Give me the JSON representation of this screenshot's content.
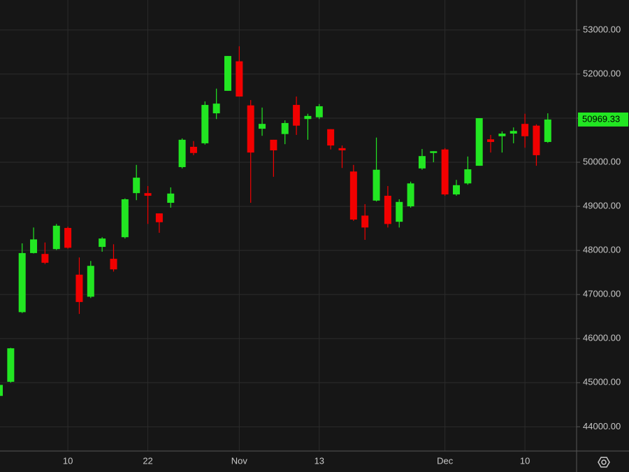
{
  "chart_data": {
    "type": "candlestick",
    "categories": [
      null,
      null,
      null,
      null,
      null,
      null,
      "10",
      null,
      null,
      null,
      null,
      null,
      null,
      "22",
      null,
      null,
      null,
      null,
      null,
      null,
      null,
      "Nov",
      null,
      null,
      null,
      null,
      null,
      null,
      "13",
      null,
      null,
      null,
      null,
      null,
      null,
      null,
      null,
      null,
      null,
      "Dec",
      null,
      null,
      null,
      null,
      null,
      null,
      "10",
      null,
      null
    ],
    "open": [
      44700,
      45020,
      46600,
      47940,
      47920,
      48030,
      48510,
      47450,
      46950,
      48080,
      47810,
      48300,
      49300,
      49300,
      48840,
      49080,
      49890,
      50350,
      50430,
      51110,
      51620,
      52290,
      51290,
      50760,
      50510,
      50640,
      51300,
      50980,
      51020,
      50750,
      50320,
      49790,
      48790,
      49130,
      49240,
      48650,
      49000,
      49860,
      50210,
      50290,
      49270,
      49520,
      49920,
      50520,
      50590,
      50650,
      50870,
      50830,
      50460
    ],
    "high": [
      45100,
      45790,
      48160,
      48520,
      48180,
      48600,
      48540,
      47840,
      47760,
      48300,
      48140,
      49180,
      49940,
      49460,
      48840,
      49430,
      50540,
      50480,
      51380,
      51670,
      52410,
      52630,
      51410,
      51240,
      50510,
      50950,
      51490,
      51100,
      51320,
      50750,
      50380,
      49940,
      49050,
      50560,
      49460,
      49160,
      49560,
      50300,
      50250,
      50320,
      49600,
      50130,
      51000,
      50620,
      50700,
      50790,
      51100,
      50860,
      51110
    ],
    "low": [
      44650,
      45000,
      46580,
      47930,
      47690,
      48010,
      48040,
      46560,
      46920,
      47970,
      47520,
      48270,
      49140,
      48600,
      48400,
      48970,
      49860,
      50160,
      50400,
      50980,
      51620,
      51490,
      49080,
      50600,
      49670,
      50410,
      50620,
      50510,
      50980,
      50290,
      49870,
      48670,
      48240,
      49110,
      48520,
      48520,
      48970,
      49830,
      50000,
      49240,
      49240,
      49490,
      49920,
      50220,
      50220,
      50430,
      50330,
      49920,
      50440
    ],
    "close": [
      44950,
      45780,
      47940,
      48250,
      47720,
      48560,
      48060,
      46830,
      47650,
      48270,
      47570,
      49160,
      49650,
      49240,
      48640,
      49290,
      50510,
      50210,
      51300,
      51330,
      52410,
      51490,
      50220,
      50870,
      50270,
      50890,
      50830,
      51050,
      51270,
      50380,
      50270,
      48700,
      48520,
      49830,
      48600,
      49100,
      49520,
      50140,
      50250,
      49270,
      49480,
      49840,
      51000,
      50460,
      50650,
      50710,
      50590,
      50160,
      50969.33
    ],
    "up_color": "#22e622",
    "down_color": "#f20000",
    "ylim": [
      43450,
      53680
    ],
    "yticks": [
      {
        "value": 44000,
        "label": "44000.00"
      },
      {
        "value": 45000,
        "label": "45000.00"
      },
      {
        "value": 46000,
        "label": "46000.00"
      },
      {
        "value": 47000,
        "label": "47000.00"
      },
      {
        "value": 48000,
        "label": "48000.00"
      },
      {
        "value": 49000,
        "label": "49000.00"
      },
      {
        "value": 50000,
        "label": "50000.00"
      },
      {
        "value": 51000,
        "label": "51000.00"
      },
      {
        "value": 52000,
        "label": "52000.00"
      },
      {
        "value": 53000,
        "label": "53000.00"
      }
    ],
    "grid": true
  }
}
